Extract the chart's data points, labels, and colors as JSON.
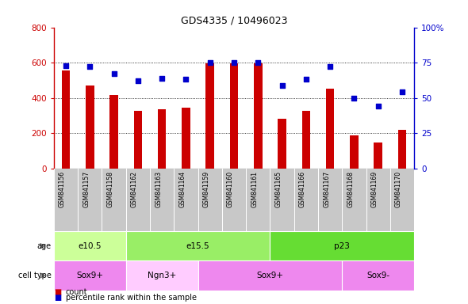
{
  "title": "GDS4335 / 10496023",
  "samples": [
    "GSM841156",
    "GSM841157",
    "GSM841158",
    "GSM841162",
    "GSM841163",
    "GSM841164",
    "GSM841159",
    "GSM841160",
    "GSM841161",
    "GSM841165",
    "GSM841166",
    "GSM841167",
    "GSM841168",
    "GSM841169",
    "GSM841170"
  ],
  "counts": [
    555,
    470,
    415,
    325,
    335,
    345,
    595,
    595,
    595,
    280,
    325,
    450,
    185,
    145,
    220
  ],
  "percentiles": [
    73,
    72,
    67,
    62,
    64,
    63,
    75,
    75,
    75,
    59,
    63,
    72,
    50,
    44,
    54
  ],
  "bar_color": "#CC0000",
  "dot_color": "#0000CC",
  "ylim_left": [
    0,
    800
  ],
  "ylim_right": [
    0,
    100
  ],
  "yticks_left": [
    0,
    200,
    400,
    600,
    800
  ],
  "yticks_right": [
    0,
    25,
    50,
    75,
    100
  ],
  "yticklabels_right": [
    "0",
    "25",
    "50",
    "75",
    "100%"
  ],
  "age_groups": [
    {
      "label": "e10.5",
      "start": 0,
      "end": 3,
      "color": "#CCFF99"
    },
    {
      "label": "e15.5",
      "start": 3,
      "end": 9,
      "color": "#99EE66"
    },
    {
      "label": "p23",
      "start": 9,
      "end": 15,
      "color": "#66DD33"
    }
  ],
  "cell_groups": [
    {
      "label": "Sox9+",
      "start": 0,
      "end": 3,
      "color": "#EE88EE"
    },
    {
      "label": "Ngn3+",
      "start": 3,
      "end": 6,
      "color": "#FFCCFF"
    },
    {
      "label": "Sox9+",
      "start": 6,
      "end": 12,
      "color": "#EE88EE"
    },
    {
      "label": "Sox9-",
      "start": 12,
      "end": 15,
      "color": "#EE88EE"
    }
  ],
  "bg_color": "#FFFFFF",
  "tick_area_color": "#C8C8C8",
  "grid_yticks": [
    200,
    400,
    600
  ],
  "age_label": "age",
  "celltype_label": "cell type",
  "legend_count": "count",
  "legend_pct": "percentile rank within the sample"
}
